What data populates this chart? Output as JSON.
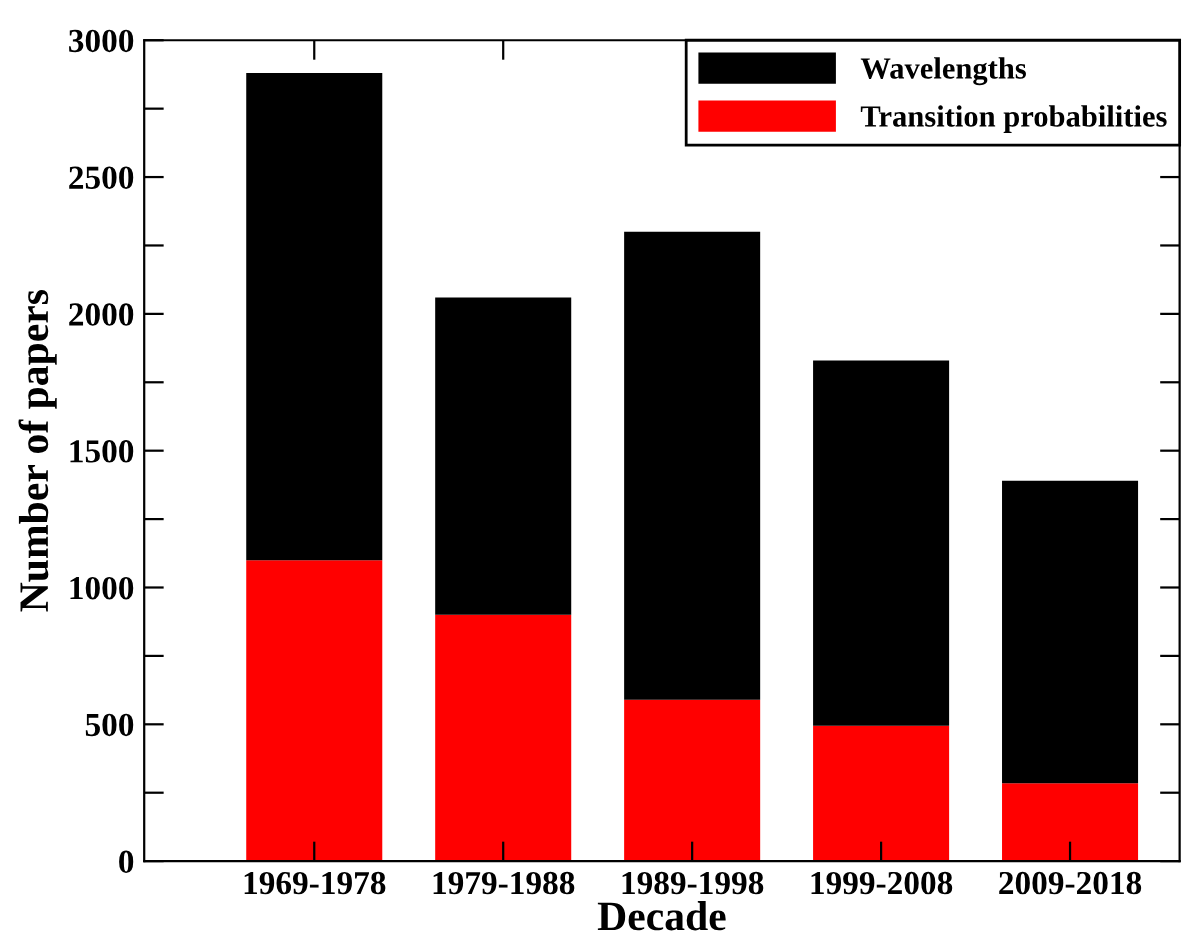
{
  "chart_data": {
    "type": "bar",
    "stacked": true,
    "xlabel": "Decade",
    "ylabel": "Number of papers",
    "categories": [
      "1969-1978",
      "1979-1988",
      "1989-1998",
      "1999-2008",
      "2009-2018"
    ],
    "series": [
      {
        "name": "Transition probabilities",
        "color": "#ff0000",
        "values": [
          1100,
          900,
          590,
          495,
          285
        ]
      },
      {
        "name": "Wavelengths",
        "color": "#000000",
        "values": [
          1780,
          1160,
          1710,
          1335,
          1105
        ]
      }
    ],
    "ylim": [
      0,
      3000
    ],
    "yticks": [
      0,
      {
        "value": 250,
        "label": null
      },
      500,
      {
        "value": 750,
        "label": null
      },
      1000,
      {
        "value": 1250,
        "label": null
      },
      1500,
      {
        "value": 1750,
        "label": null
      },
      2000,
      {
        "value": 2250,
        "label": null
      },
      2500,
      {
        "value": 2750,
        "label": null
      },
      3000
    ],
    "legend": "top right",
    "grid": false
  }
}
